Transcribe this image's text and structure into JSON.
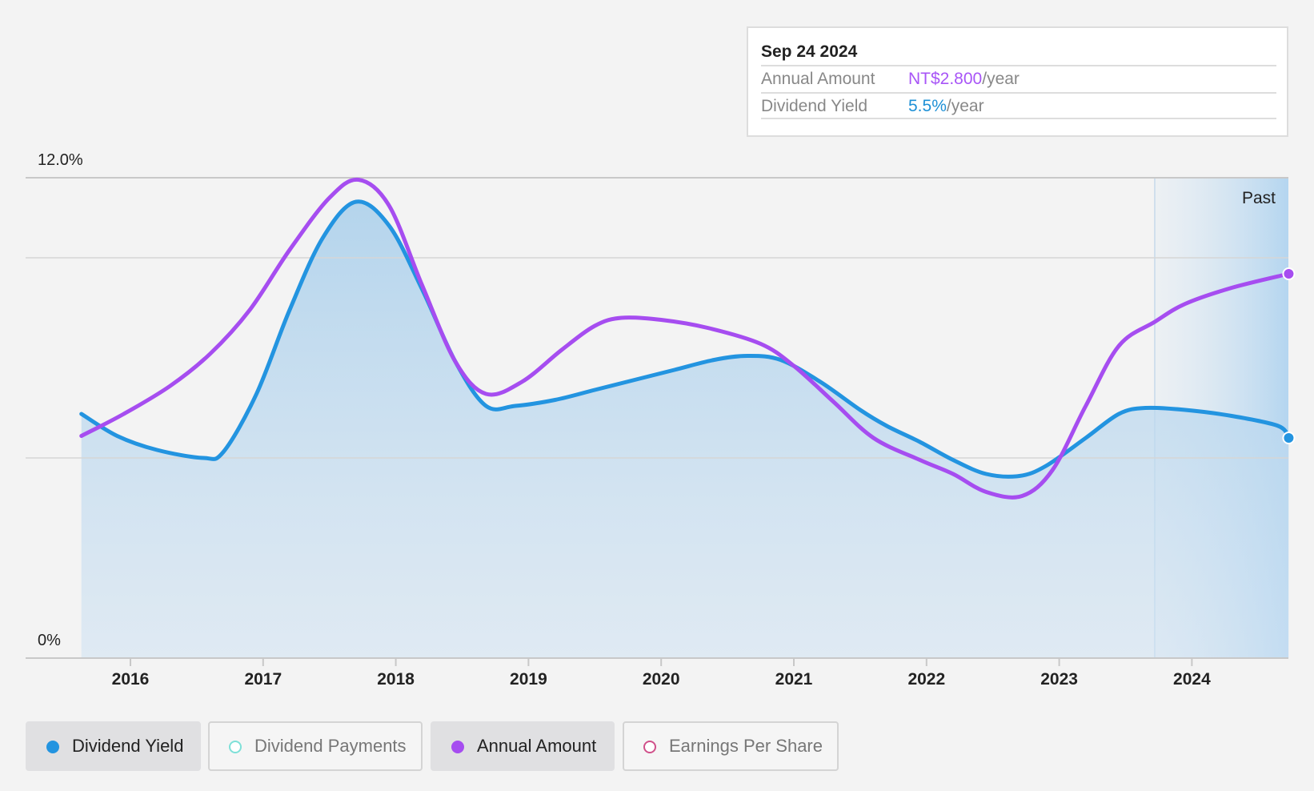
{
  "tooltip": {
    "date": "Sep 24 2024",
    "annual_amount_label": "Annual Amount",
    "annual_amount_value": "NT$2.800",
    "annual_amount_unit": "/year",
    "dividend_yield_label": "Dividend Yield",
    "dividend_yield_value": "5.5%",
    "dividend_yield_unit": "/year"
  },
  "legend": [
    {
      "label": "Dividend Yield",
      "color": "#2394e0",
      "active": true,
      "icon": "filled-dot-icon"
    },
    {
      "label": "Dividend Payments",
      "color": "#7ee0d8",
      "active": false,
      "icon": "hollow-dot-icon"
    },
    {
      "label": "Annual Amount",
      "color": "#a64df0",
      "active": true,
      "icon": "filled-dot-icon"
    },
    {
      "label": "Earnings Per Share",
      "color": "#d0508a",
      "active": false,
      "icon": "hollow-dot-icon"
    }
  ],
  "chart_data": {
    "type": "line",
    "x_ticks": [
      2016,
      2017,
      2018,
      2019,
      2020,
      2021,
      2022,
      2023,
      2024
    ],
    "x_tick_labels": [
      "2016",
      "2017",
      "2018",
      "2019",
      "2020",
      "2021",
      "2022",
      "2023",
      "2024"
    ],
    "xlim": [
      2015.25,
      2024.95
    ],
    "y_axis": {
      "min_label": "0%",
      "max_label": "12.0%",
      "ylim": [
        0,
        12.0
      ],
      "gridlines": [
        0,
        5.0,
        10.0,
        12.0
      ]
    },
    "past_region_start": 2023.72,
    "past_label": "Past",
    "grid": true,
    "series": [
      {
        "name": "Dividend Yield",
        "color": "#2394e0",
        "area_fill": true,
        "points": [
          [
            2015.63,
            6.1
          ],
          [
            2015.9,
            5.55
          ],
          [
            2016.2,
            5.2
          ],
          [
            2016.55,
            5.0
          ],
          [
            2016.7,
            5.15
          ],
          [
            2016.95,
            6.6
          ],
          [
            2017.2,
            8.7
          ],
          [
            2017.45,
            10.5
          ],
          [
            2017.7,
            11.4
          ],
          [
            2017.95,
            10.8
          ],
          [
            2018.2,
            9.2
          ],
          [
            2018.45,
            7.4
          ],
          [
            2018.68,
            6.3
          ],
          [
            2018.9,
            6.3
          ],
          [
            2019.2,
            6.45
          ],
          [
            2019.5,
            6.7
          ],
          [
            2019.8,
            6.95
          ],
          [
            2020.1,
            7.2
          ],
          [
            2020.4,
            7.45
          ],
          [
            2020.65,
            7.55
          ],
          [
            2020.9,
            7.45
          ],
          [
            2021.2,
            6.9
          ],
          [
            2021.5,
            6.2
          ],
          [
            2021.7,
            5.8
          ],
          [
            2021.95,
            5.4
          ],
          [
            2022.2,
            4.95
          ],
          [
            2022.45,
            4.6
          ],
          [
            2022.7,
            4.55
          ],
          [
            2022.9,
            4.8
          ],
          [
            2023.2,
            5.5
          ],
          [
            2023.45,
            6.1
          ],
          [
            2023.65,
            6.25
          ],
          [
            2023.95,
            6.2
          ],
          [
            2024.3,
            6.05
          ],
          [
            2024.65,
            5.8
          ],
          [
            2024.73,
            5.5
          ]
        ]
      },
      {
        "name": "Annual Amount",
        "color": "#a64df0",
        "area_fill": false,
        "points": [
          [
            2015.63,
            5.55
          ],
          [
            2015.95,
            6.1
          ],
          [
            2016.3,
            6.8
          ],
          [
            2016.6,
            7.6
          ],
          [
            2016.9,
            8.7
          ],
          [
            2017.2,
            10.2
          ],
          [
            2017.5,
            11.5
          ],
          [
            2017.72,
            11.95
          ],
          [
            2017.95,
            11.3
          ],
          [
            2018.2,
            9.3
          ],
          [
            2018.45,
            7.4
          ],
          [
            2018.68,
            6.6
          ],
          [
            2018.95,
            6.9
          ],
          [
            2019.25,
            7.7
          ],
          [
            2019.5,
            8.3
          ],
          [
            2019.7,
            8.5
          ],
          [
            2020.0,
            8.45
          ],
          [
            2020.35,
            8.25
          ],
          [
            2020.75,
            7.85
          ],
          [
            2021.0,
            7.3
          ],
          [
            2021.3,
            6.4
          ],
          [
            2021.6,
            5.5
          ],
          [
            2021.95,
            4.95
          ],
          [
            2022.2,
            4.6
          ],
          [
            2022.45,
            4.15
          ],
          [
            2022.72,
            4.05
          ],
          [
            2022.95,
            4.7
          ],
          [
            2023.2,
            6.3
          ],
          [
            2023.45,
            7.8
          ],
          [
            2023.72,
            8.4
          ],
          [
            2023.95,
            8.85
          ],
          [
            2024.3,
            9.25
          ],
          [
            2024.73,
            9.6
          ]
        ]
      }
    ]
  }
}
